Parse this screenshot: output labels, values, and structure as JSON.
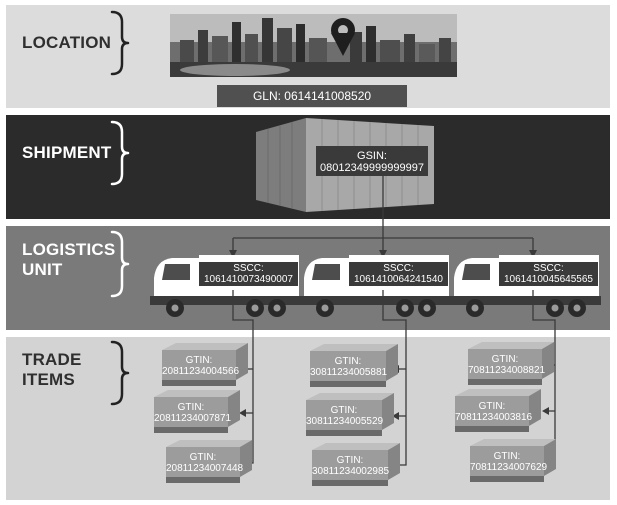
{
  "bands": [
    {
      "id": "location",
      "label": "LOCATION"
    },
    {
      "id": "shipment",
      "label": "SHIPMENT"
    },
    {
      "id": "logistics",
      "label": "LOGISTICS\nUNIT"
    },
    {
      "id": "trade",
      "label": "TRADE\nITEMS"
    }
  ],
  "location": {
    "gln": "GLN: 0614141008520"
  },
  "shipment": {
    "gsin_title": "GSIN:",
    "gsin_value": "08012349999999997"
  },
  "trucks": [
    {
      "title": "SSCC:",
      "value": "1061410073490007"
    },
    {
      "title": "SSCC:",
      "value": "1061410064241540"
    },
    {
      "title": "SSCC:",
      "value": "1061410045645565"
    }
  ],
  "items": [
    [
      {
        "title": "GTIN:",
        "value": "20811234004566"
      },
      {
        "title": "GTIN:",
        "value": "20811234007871"
      },
      {
        "title": "GTIN:",
        "value": "20811234007448"
      }
    ],
    [
      {
        "title": "GTIN:",
        "value": "30811234005881"
      },
      {
        "title": "GTIN:",
        "value": "30811234005529"
      },
      {
        "title": "GTIN:",
        "value": "30811234002985"
      }
    ],
    [
      {
        "title": "GTIN:",
        "value": "70811234008821"
      },
      {
        "title": "GTIN:",
        "value": "70811234003816"
      },
      {
        "title": "GTIN:",
        "value": "70811234007629"
      }
    ]
  ],
  "colors": {
    "location_band": "#dcdcdc",
    "shipment_band": "#2b2b2b",
    "logistics_band": "#7a7a7a",
    "trade_band": "#d3d3d3",
    "connector": "#3a3a3a"
  }
}
